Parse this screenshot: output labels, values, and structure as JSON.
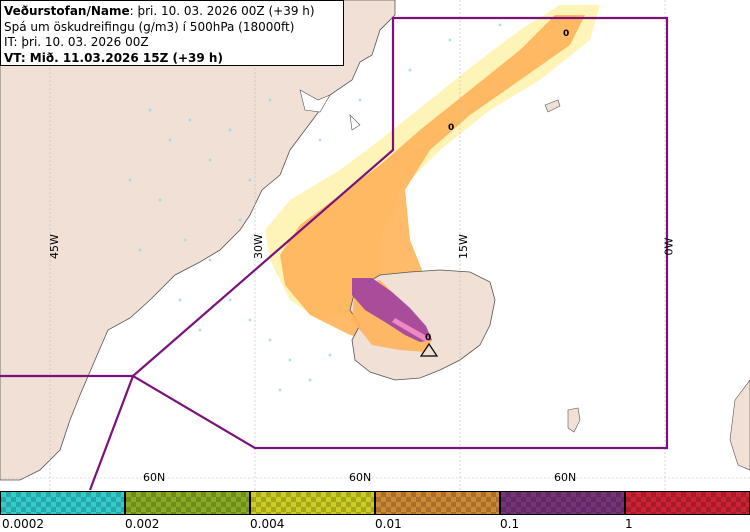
{
  "header": {
    "line1_prefix": "Veðurstofan/Name",
    "line1_suffix": ": þri. 10. 03. 2026 00Z (+39 h)",
    "line2": "Spá um öskudreifingu (g/m3) í 500hPa (18000ft)",
    "line3": "IT: þri. 10. 03. 2026 00Z",
    "line4": "VT: Mið. 11.03.2026 15Z (+39 h)"
  },
  "grid_labels": {
    "lon_45w": "45W",
    "lon_30w": "30W",
    "lon_15w": "15W",
    "lon_0w": "0W",
    "lat_60n_a": "60N",
    "lat_60n_b": "60N",
    "lat_60n_c": "60N"
  },
  "contour_labels": [
    "0",
    "0",
    "0"
  ],
  "legend": {
    "labels": [
      "0.0002",
      "0.002",
      "0.004",
      "0.01",
      "0.1",
      "1"
    ],
    "colors": [
      "#33cccc",
      "#88aa22",
      "#cccc22",
      "#cc8833",
      "#773377",
      "#cc2233"
    ]
  },
  "colors": {
    "land": "#f0e0d5",
    "sea": "#ffffff",
    "fir_boundary": "#7a127a",
    "ash_low": "#ffee99",
    "ash_mid": "#ffb35a",
    "ash_high": "#a040a0"
  },
  "icons": {
    "volcano": "triangle-warning-icon"
  }
}
